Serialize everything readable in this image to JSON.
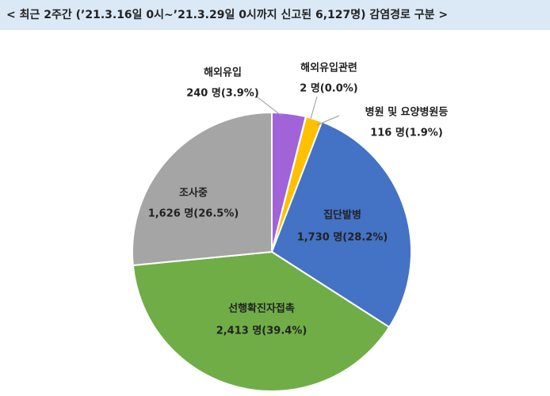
{
  "chart_data": {
    "type": "pie",
    "title": "< 최근 2주간 (’21.3.16일 0시~’21.3.29일 0시까지 신고된 6,127명) 감염경로 구분 >",
    "categories": [
      "해외유입",
      "해외유입관련",
      "병원 및 요양병원등",
      "집단발병",
      "선행확진자접촉",
      "조사중"
    ],
    "values": [
      240,
      2,
      116,
      1730,
      2413,
      1626
    ],
    "value_labels": [
      "240 명(3.9%)",
      "2 명(0.0%)",
      "116 명(1.9%)",
      "1,730 명(28.2%)",
      "2,413 명(39.4%)",
      "1,626 명(26.5%)"
    ],
    "colors": [
      "#a064d8",
      "#ed7d31",
      "#ffc000",
      "#4472c4",
      "#70ad47",
      "#a5a5a5"
    ]
  }
}
